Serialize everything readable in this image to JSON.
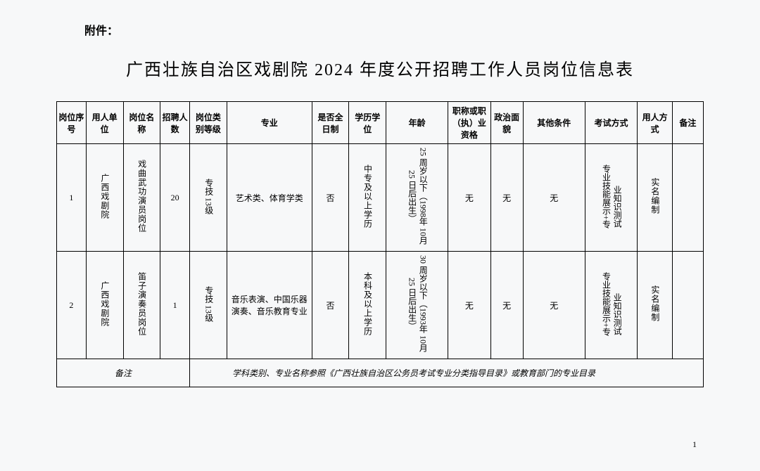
{
  "attachment_label": "附件：",
  "title": "广西壮族自治区戏剧院 2024 年度公开招聘工作人员岗位信息表",
  "headers": {
    "seq": "岗位序号",
    "unit": "用人单位",
    "position": "岗位名称",
    "count": "招聘人数",
    "level": "岗位类别等级",
    "major": "专业",
    "fulltime": "是否全日制",
    "education": "学历学位",
    "age": "年龄",
    "qualification": "职称或职（执）业资格",
    "political": "政治面貌",
    "other": "其他条件",
    "exam": "考试方式",
    "hire": "用人方式",
    "remark": "备注"
  },
  "rows": [
    {
      "seq": "1",
      "unit": "广西戏剧院",
      "position": "戏曲武功演员岗位",
      "count": "20",
      "level": "专技\n13级",
      "major": "艺术类、体育学类",
      "fulltime": "否",
      "education": "中专及以上学历",
      "age": "25 周岁以下（1998年 10月25 日后出生）",
      "qualification": "无",
      "political": "无",
      "other": "无",
      "exam_col1": "专业技能展示+专",
      "exam_col2": "业知识测试",
      "hire": "实名编制",
      "remark": ""
    },
    {
      "seq": "2",
      "unit": "广西戏剧院",
      "position": "笛子演奏员岗位",
      "count": "1",
      "level": "专技\n13级",
      "major": "音乐表演、中国乐器演奏、音乐教育专业",
      "fulltime": "否",
      "education": "本科及以上学历",
      "age": "30 周岁以下（1993年 10月25 日后出生）",
      "qualification": "无",
      "political": "无",
      "other": "无",
      "exam_col1": "专业技能展示+专",
      "exam_col2": "业知识测试",
      "hire": "实名编制",
      "remark": ""
    }
  ],
  "note_label": "备注",
  "note_content": "学科类别、专业名称参照《广西壮族自治区公务员考试专业分类指导目录》或教育部门的专业目录",
  "page_number": "1"
}
